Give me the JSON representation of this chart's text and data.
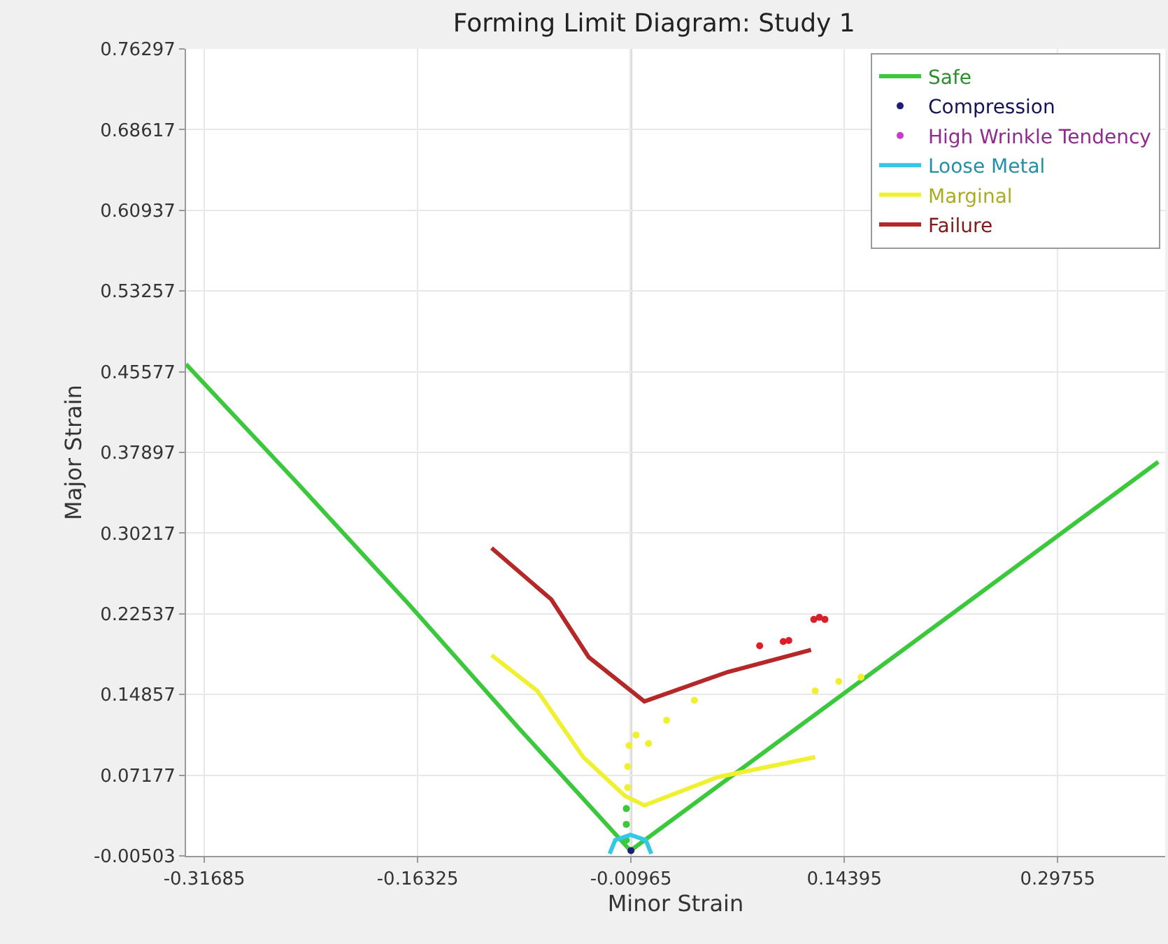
{
  "chart_data": {
    "type": "line",
    "title": "Forming Limit Diagram: Study 1",
    "xlabel": "Minor Strain",
    "ylabel": "Major Strain",
    "xlim": [
      -0.33,
      0.375
    ],
    "xticks": [
      -0.31685,
      -0.16325,
      -0.00965,
      0.14395,
      0.29755
    ],
    "ylim": [
      -0.00503,
      0.76297
    ],
    "yticks": [
      -0.00503,
      0.07177,
      0.14857,
      0.22537,
      0.30217,
      0.37897,
      0.45577,
      0.53257,
      0.60937,
      0.68617,
      0.76297
    ],
    "grid": true,
    "legend": "top right",
    "ref_lines": [
      {
        "axis": "x",
        "value": -0.00965,
        "color": "#b4b4b4"
      }
    ],
    "series": [
      {
        "name": "Safe",
        "color": "#3cc83c",
        "x": [
          -0.33,
          -0.25,
          -0.17,
          -0.09,
          -0.01,
          0.37
        ],
        "values": [
          0.463,
          0.35,
          0.235,
          0.116,
          0.0,
          0.37
        ]
      },
      {
        "color": "#3cc83c",
        "type": "scatter",
        "x": [
          -0.013,
          -0.013,
          -0.013
        ],
        "values": [
          0.01,
          0.025,
          0.04
        ]
      },
      {
        "name": "Compression",
        "color": "#1e1e78",
        "type": "scatter",
        "x": [
          -0.00965
        ],
        "values": [
          0.0
        ]
      },
      {
        "name": "High Wrinkle Tendency",
        "color": "#c83cc8",
        "type": "scatter"
      },
      {
        "name": "Loose Metal",
        "color": "#32c8e6",
        "type": "line",
        "x": [
          -0.025,
          -0.021,
          -0.01,
          0.001,
          0.005
        ],
        "values": [
          -0.003,
          0.01,
          0.015,
          0.01,
          -0.003
        ]
      },
      {
        "name": "Marginal",
        "color": "#f0f032",
        "type": "line",
        "x": [
          -0.11,
          -0.077,
          -0.044,
          -0.014,
          0.0,
          0.053,
          0.123
        ],
        "values": [
          0.186,
          0.152,
          0.089,
          0.052,
          0.043,
          0.07,
          0.089
        ]
      },
      {
        "color": "#f0f032",
        "type": "scatter",
        "x": [
          -0.012,
          -0.012,
          -0.011,
          -0.006,
          0.003,
          0.016,
          0.036,
          0.123,
          0.14,
          0.156
        ],
        "values": [
          0.06,
          0.08,
          0.1,
          0.11,
          0.102,
          0.124,
          0.143,
          0.152,
          0.161,
          0.165
        ]
      },
      {
        "name": "Failure",
        "color": "#b42828",
        "type": "line",
        "x": [
          -0.11,
          -0.067,
          -0.04,
          0.0,
          0.06,
          0.12
        ],
        "values": [
          0.288,
          0.239,
          0.184,
          0.142,
          0.17,
          0.191
        ]
      },
      {
        "color": "#dc1e28",
        "type": "scatter",
        "x": [
          0.083,
          0.1,
          0.104,
          0.122,
          0.126,
          0.13
        ],
        "values": [
          0.195,
          0.199,
          0.2,
          0.22,
          0.222,
          0.22
        ]
      }
    ]
  }
}
